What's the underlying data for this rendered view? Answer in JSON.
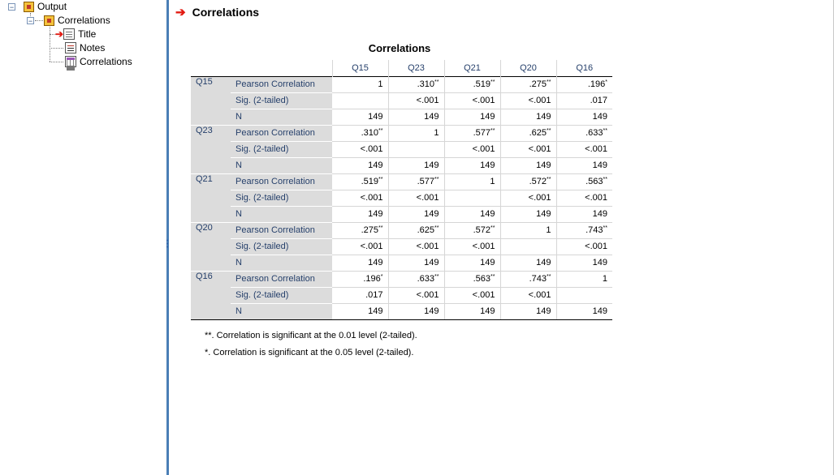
{
  "outline": {
    "root_label": "Output",
    "group_label": "Correlations",
    "items": [
      {
        "label": "Title",
        "icon": "title-doc-icon",
        "current": true
      },
      {
        "label": "Notes",
        "icon": "notes-doc-icon",
        "current": false
      },
      {
        "label": "Correlations",
        "icon": "table-doc-icon",
        "current": false
      }
    ]
  },
  "output": {
    "heading": "Correlations",
    "table_title": "Correlations",
    "columns": [
      "Q15",
      "Q23",
      "Q21",
      "Q20",
      "Q16"
    ],
    "stat_labels": [
      "Pearson Correlation",
      "Sig. (2-tailed)",
      "N"
    ],
    "rows": [
      {
        "var": "Q15",
        "r": [
          {
            "v": "1",
            "s": ""
          },
          {
            "v": ".310",
            "s": "**"
          },
          {
            "v": ".519",
            "s": "**"
          },
          {
            "v": ".275",
            "s": "**"
          },
          {
            "v": ".196",
            "s": "*"
          }
        ],
        "sig": [
          "",
          "<.001",
          "<.001",
          "<.001",
          ".017"
        ],
        "n": [
          "149",
          "149",
          "149",
          "149",
          "149"
        ]
      },
      {
        "var": "Q23",
        "r": [
          {
            "v": ".310",
            "s": "**"
          },
          {
            "v": "1",
            "s": ""
          },
          {
            "v": ".577",
            "s": "**"
          },
          {
            "v": ".625",
            "s": "**"
          },
          {
            "v": ".633",
            "s": "**"
          }
        ],
        "sig": [
          "<.001",
          "",
          "<.001",
          "<.001",
          "<.001"
        ],
        "n": [
          "149",
          "149",
          "149",
          "149",
          "149"
        ]
      },
      {
        "var": "Q21",
        "r": [
          {
            "v": ".519",
            "s": "**"
          },
          {
            "v": ".577",
            "s": "**"
          },
          {
            "v": "1",
            "s": ""
          },
          {
            "v": ".572",
            "s": "**"
          },
          {
            "v": ".563",
            "s": "**"
          }
        ],
        "sig": [
          "<.001",
          "<.001",
          "",
          "<.001",
          "<.001"
        ],
        "n": [
          "149",
          "149",
          "149",
          "149",
          "149"
        ]
      },
      {
        "var": "Q20",
        "r": [
          {
            "v": ".275",
            "s": "**"
          },
          {
            "v": ".625",
            "s": "**"
          },
          {
            "v": ".572",
            "s": "**"
          },
          {
            "v": "1",
            "s": ""
          },
          {
            "v": ".743",
            "s": "**"
          }
        ],
        "sig": [
          "<.001",
          "<.001",
          "<.001",
          "",
          "<.001"
        ],
        "n": [
          "149",
          "149",
          "149",
          "149",
          "149"
        ]
      },
      {
        "var": "Q16",
        "r": [
          {
            "v": ".196",
            "s": "*"
          },
          {
            "v": ".633",
            "s": "**"
          },
          {
            "v": ".563",
            "s": "**"
          },
          {
            "v": ".743",
            "s": "**"
          },
          {
            "v": "1",
            "s": ""
          }
        ],
        "sig": [
          ".017",
          "<.001",
          "<.001",
          "<.001",
          ""
        ],
        "n": [
          "149",
          "149",
          "149",
          "149",
          "149"
        ]
      }
    ],
    "footnotes": [
      "**. Correlation is significant at the 0.01 level (2-tailed).",
      "*. Correlation is significant at the 0.05 level (2-tailed)."
    ]
  },
  "colors": {
    "splitter": "#4a7fb6",
    "arrow": "#e21b12",
    "label_text": "#26406b"
  }
}
